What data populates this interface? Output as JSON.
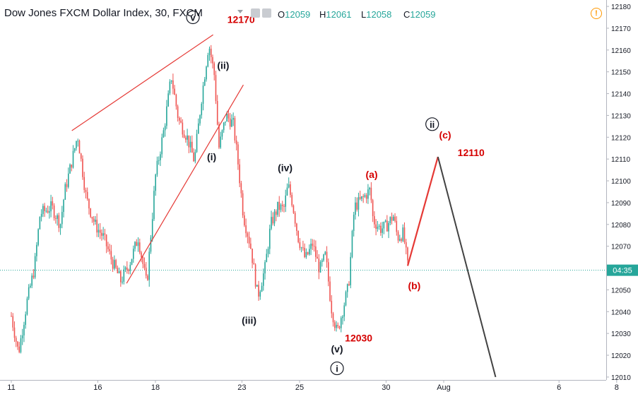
{
  "header": {
    "title": "Dow Jones FXCM Dollar Index, 30, FXCM",
    "ohlc": {
      "o_label": "O",
      "o_value": "12059",
      "h_label": "H",
      "h_value": "12061",
      "l_label": "L",
      "l_value": "12058",
      "c_label": "C",
      "c_value": "12059"
    }
  },
  "icons": {
    "settings": "settings-icon",
    "alert": "alert-icon"
  },
  "colors": {
    "up_candle": "#26a69a",
    "down_candle": "#ef5350",
    "annotation_red": "#e53935",
    "projection_dark": "#424242",
    "price_tag": "#26a69a",
    "label_red": "#d50000"
  },
  "chart_data": {
    "type": "candlestick",
    "title": "Dow Jones FXCM Dollar Index, 30, FXCM",
    "ylim": [
      12009,
      12181
    ],
    "y_ticks": [
      12010,
      12020,
      12030,
      12040,
      12050,
      12060,
      12070,
      12080,
      12090,
      12100,
      12110,
      12120,
      12130,
      12140,
      12150,
      12160,
      12170,
      12180
    ],
    "x_ticks": [
      {
        "label": "11",
        "x": 0
      },
      {
        "label": "16",
        "x": 3
      },
      {
        "label": "18",
        "x": 5
      },
      {
        "label": "23",
        "x": 8
      },
      {
        "label": "25",
        "x": 10
      },
      {
        "label": "30",
        "x": 13
      },
      {
        "label": "Aug",
        "x": 15
      },
      {
        "label": "6",
        "x": 19
      },
      {
        "label": "8",
        "x": 21
      }
    ],
    "current_price": 12059,
    "current_price_tag": "04:35",
    "path": [
      [
        0.0,
        12038
      ],
      [
        0.25,
        12021
      ],
      [
        0.55,
        12045
      ],
      [
        0.8,
        12060
      ],
      [
        1.0,
        12085
      ],
      [
        1.4,
        12088
      ],
      [
        1.7,
        12080
      ],
      [
        1.85,
        12095
      ],
      [
        2.15,
        12112
      ],
      [
        2.3,
        12121
      ],
      [
        2.6,
        12092
      ],
      [
        2.9,
        12080
      ],
      [
        3.2,
        12074
      ],
      [
        3.5,
        12063
      ],
      [
        3.8,
        12054
      ],
      [
        4.1,
        12062
      ],
      [
        4.4,
        12074
      ],
      [
        4.7,
        12052
      ],
      [
        5.0,
        12102
      ],
      [
        5.3,
        12124
      ],
      [
        5.55,
        12148
      ],
      [
        5.8,
        12128
      ],
      [
        6.1,
        12120
      ],
      [
        6.35,
        12109
      ],
      [
        6.6,
        12138
      ],
      [
        6.85,
        12163
      ],
      [
        7.05,
        12148
      ],
      [
        7.2,
        12115
      ],
      [
        7.45,
        12130
      ],
      [
        7.7,
        12126
      ],
      [
        7.85,
        12110
      ],
      [
        8.05,
        12084
      ],
      [
        8.3,
        12070
      ],
      [
        8.55,
        12047
      ],
      [
        8.8,
        12060
      ],
      [
        9.0,
        12080
      ],
      [
        9.25,
        12088
      ],
      [
        9.45,
        12087
      ],
      [
        9.6,
        12098
      ],
      [
        9.75,
        12090
      ],
      [
        9.95,
        12074
      ],
      [
        10.2,
        12064
      ],
      [
        10.45,
        12071
      ],
      [
        10.7,
        12059
      ],
      [
        10.9,
        12066
      ],
      [
        11.1,
        12042
      ],
      [
        11.3,
        12030
      ],
      [
        11.5,
        12041
      ],
      [
        11.7,
        12052
      ],
      [
        11.9,
        12088
      ],
      [
        12.2,
        12092
      ],
      [
        12.45,
        12096
      ],
      [
        12.55,
        12082
      ],
      [
        12.8,
        12078
      ],
      [
        13.0,
        12079
      ],
      [
        13.25,
        12084
      ],
      [
        13.4,
        12074
      ],
      [
        13.6,
        12076
      ],
      [
        13.75,
        12061
      ]
    ],
    "projection": [
      [
        13.75,
        12061
      ],
      [
        14.8,
        12111
      ],
      [
        16.8,
        12010
      ]
    ],
    "trendlines": [
      {
        "from": [
          2.1,
          12123
        ],
        "to": [
          7.0,
          12167
        ]
      },
      {
        "from": [
          4.0,
          12053
        ],
        "to": [
          8.05,
          12144
        ]
      }
    ],
    "annotations": [
      {
        "text": "v",
        "circled": true,
        "x": 6.3,
        "y": 12175,
        "color": "#131722"
      },
      {
        "text": "12170",
        "circled": false,
        "x": 7.97,
        "y": 12174,
        "color": "#d50000"
      },
      {
        "text": "(ii)",
        "circled": false,
        "x": 7.35,
        "y": 12153,
        "color": "#131722"
      },
      {
        "text": "(i)",
        "circled": false,
        "x": 6.95,
        "y": 12111,
        "color": "#131722"
      },
      {
        "text": "(iii)",
        "circled": false,
        "x": 8.25,
        "y": 12036,
        "color": "#131722"
      },
      {
        "text": "(iv)",
        "circled": false,
        "x": 9.5,
        "y": 12106,
        "color": "#131722"
      },
      {
        "text": "(v)",
        "circled": false,
        "x": 11.3,
        "y": 12023,
        "color": "#131722"
      },
      {
        "text": "i",
        "circled": true,
        "x": 11.3,
        "y": 12014,
        "color": "#131722"
      },
      {
        "text": "12030",
        "circled": false,
        "x": 12.05,
        "y": 12028,
        "color": "#d50000"
      },
      {
        "text": "(a)",
        "circled": false,
        "x": 12.5,
        "y": 12103,
        "color": "#d50000"
      },
      {
        "text": "(b)",
        "circled": false,
        "x": 13.98,
        "y": 12052,
        "color": "#d50000"
      },
      {
        "text": "ii",
        "circled": true,
        "x": 14.6,
        "y": 12126,
        "color": "#131722"
      },
      {
        "text": "(c)",
        "circled": false,
        "x": 15.05,
        "y": 12121,
        "color": "#d50000"
      },
      {
        "text": "12110",
        "circled": false,
        "x": 15.95,
        "y": 12113,
        "color": "#d50000"
      }
    ]
  }
}
